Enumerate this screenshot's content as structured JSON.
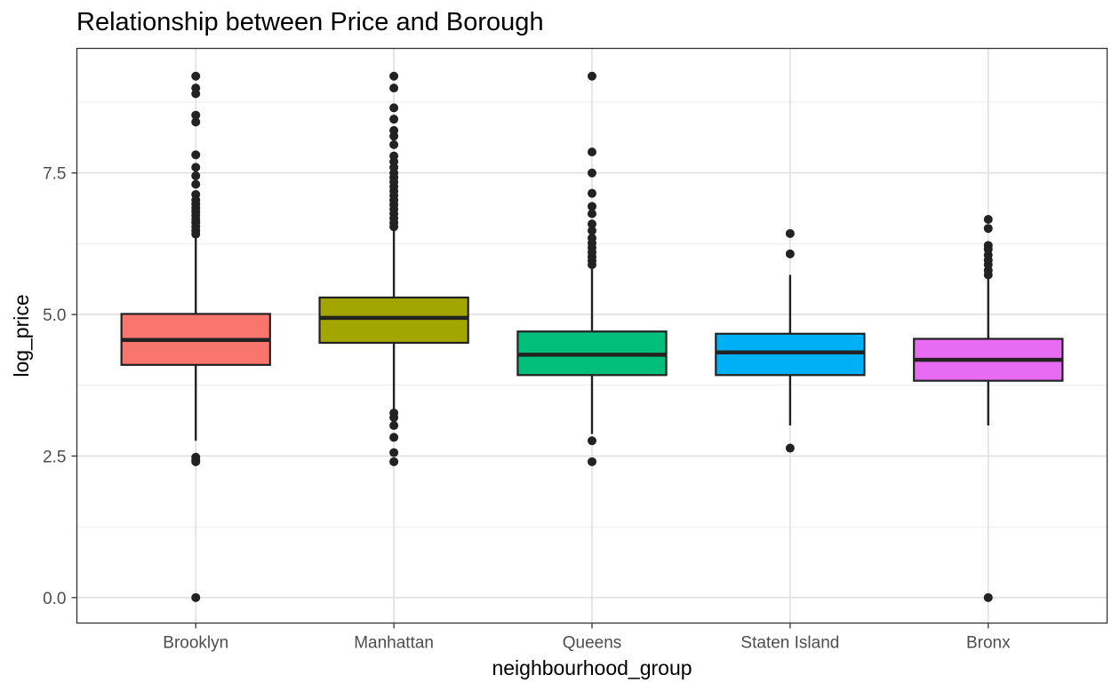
{
  "chart_data": {
    "type": "boxplot",
    "title": "Relationship between Price and Borough",
    "xlabel": "neighbourhood_group",
    "ylabel": "log_price",
    "ylim": [
      -0.45,
      9.7
    ],
    "yticks": [
      0.0,
      2.5,
      5.0,
      7.5
    ],
    "ytick_labels": [
      "0.0",
      "2.5",
      "5.0",
      "7.5"
    ],
    "grid": true,
    "legend": "none",
    "categories": [
      "Brooklyn",
      "Manhattan",
      "Queens",
      "Staten Island",
      "Bronx"
    ],
    "boxes": [
      {
        "name": "Brooklyn",
        "color": "#F8766D",
        "lower_whisker": 2.77,
        "q1": 4.11,
        "median": 4.55,
        "q3": 5.01,
        "upper_whisker": 6.38,
        "outliers": [
          0.0,
          2.4,
          2.43,
          2.48,
          6.42,
          6.48,
          6.55,
          6.62,
          6.68,
          6.75,
          6.82,
          6.88,
          6.95,
          7.02,
          7.12,
          7.3,
          7.45,
          7.6,
          7.82,
          8.4,
          8.52,
          8.9,
          9.0,
          9.21
        ]
      },
      {
        "name": "Manhattan",
        "color": "#A3A500",
        "lower_whisker": 3.3,
        "q1": 4.5,
        "median": 4.94,
        "q3": 5.3,
        "upper_whisker": 6.5,
        "outliers": [
          2.4,
          2.56,
          2.83,
          3.04,
          3.18,
          3.26,
          6.55,
          6.62,
          6.7,
          6.78,
          6.86,
          6.94,
          7.02,
          7.1,
          7.18,
          7.26,
          7.34,
          7.42,
          7.5,
          7.6,
          7.7,
          7.8,
          8.0,
          8.15,
          8.25,
          8.45,
          8.65,
          9.0,
          9.21
        ]
      },
      {
        "name": "Queens",
        "color": "#00BF7D",
        "lower_whisker": 2.89,
        "q1": 3.93,
        "median": 4.29,
        "q3": 4.7,
        "upper_whisker": 5.83,
        "outliers": [
          2.4,
          2.77,
          5.88,
          5.95,
          6.02,
          6.1,
          6.18,
          6.26,
          6.35,
          6.48,
          6.6,
          6.78,
          6.91,
          7.14,
          7.5,
          7.87,
          9.21
        ]
      },
      {
        "name": "Staten Island",
        "color": "#00B0F6",
        "lower_whisker": 3.04,
        "q1": 3.93,
        "median": 4.33,
        "q3": 4.66,
        "upper_whisker": 5.7,
        "outliers": [
          2.64,
          6.07,
          6.43
        ]
      },
      {
        "name": "Bronx",
        "color": "#E76BF3",
        "lower_whisker": 3.04,
        "q1": 3.83,
        "median": 4.2,
        "q3": 4.57,
        "upper_whisker": 5.66,
        "outliers": [
          0.0,
          5.7,
          5.78,
          5.88,
          5.96,
          6.05,
          6.15,
          6.22,
          6.52,
          6.68
        ]
      }
    ]
  }
}
